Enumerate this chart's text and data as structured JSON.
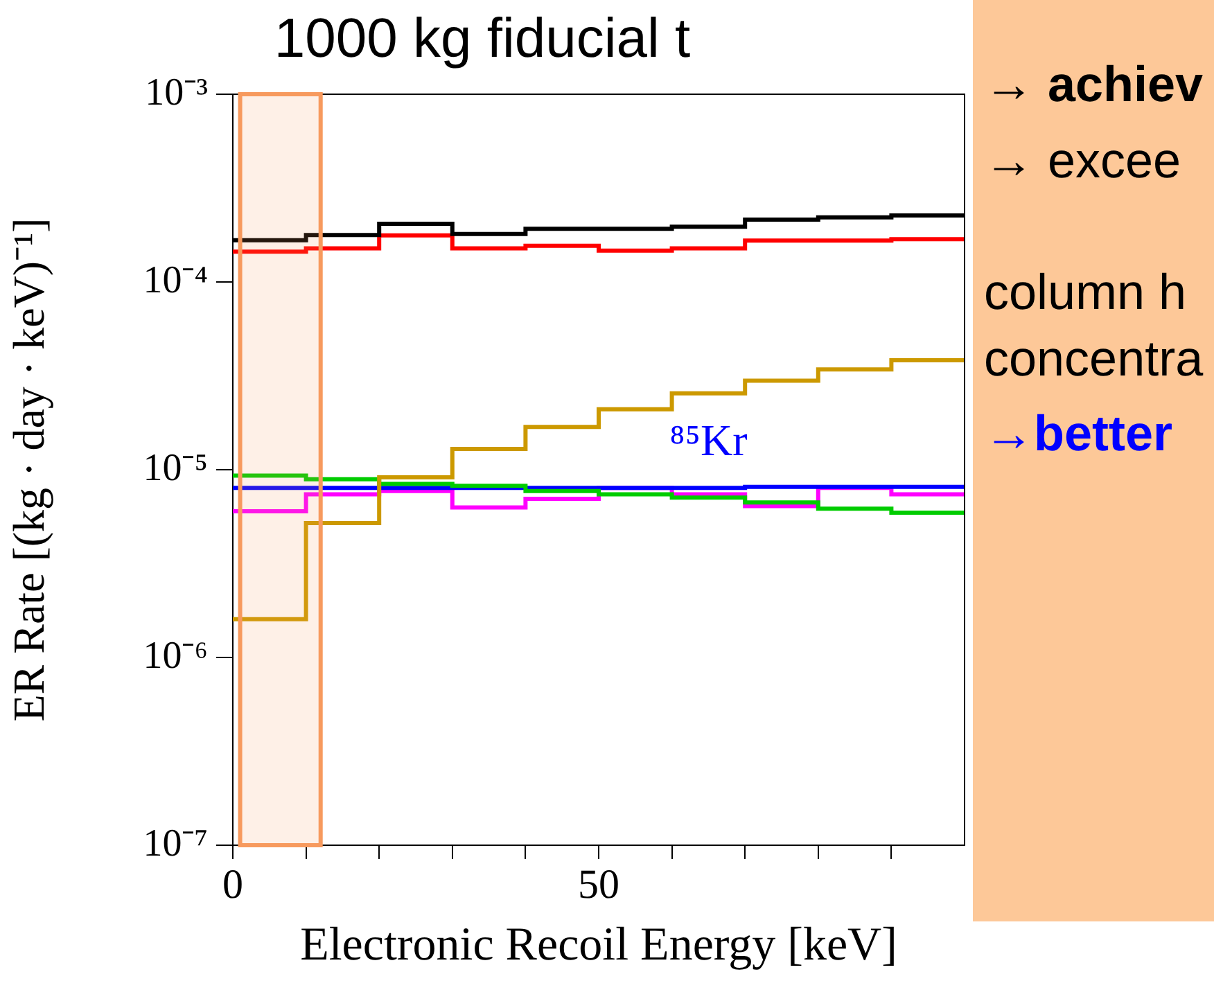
{
  "chart_data": {
    "type": "histogram",
    "title": "1000 kg fiducial t",
    "xlabel": "Electronic Recoil Energy [keV]",
    "ylabel": "ER Rate [(kg · day · keV)⁻¹]",
    "bins": [
      0,
      10,
      20,
      30,
      40,
      50,
      60,
      70,
      80,
      90,
      100
    ],
    "series": [
      {
        "color": "#000000",
        "values": [
          0.000167,
          0.000178,
          0.000204,
          0.00018,
          0.000192,
          0.000192,
          0.000197,
          0.000215,
          0.000221,
          0.000226
        ]
      },
      {
        "color": "#ff0000",
        "values": [
          0.000145,
          0.000151,
          0.000177,
          0.000151,
          0.000156,
          0.000147,
          0.000151,
          0.000166,
          0.000166,
          0.000169
        ]
      },
      {
        "color": "#cc9900",
        "values": [
          1.6e-06,
          5.2e-06,
          9.1e-06,
          1.29e-05,
          1.69e-05,
          2.1e-05,
          2.55e-05,
          2.98e-05,
          3.42e-05,
          3.83e-05
        ]
      },
      {
        "color": "#00cc00",
        "values": [
          9.3e-06,
          8.9e-06,
          8.4e-06,
          8.2e-06,
          7.7e-06,
          7.4e-06,
          7.1e-06,
          6.7e-06,
          6.2e-06,
          5.9e-06
        ]
      },
      {
        "name": "⁸⁵Kr",
        "color": "#0000ff",
        "values": [
          8e-06,
          8e-06,
          8e-06,
          8e-06,
          8e-06,
          8e-06,
          8e-06,
          8.1e-06,
          8.1e-06,
          8.1e-06
        ]
      },
      {
        "color": "#ff00ff",
        "values": [
          6e-06,
          7.4e-06,
          7.7e-06,
          6.3e-06,
          7e-06,
          8e-06,
          7.4e-06,
          6.4e-06,
          8e-06,
          7.4e-06
        ]
      }
    ],
    "xlim": [
      0,
      100
    ],
    "xticks": [
      0,
      {
        "value": 10,
        "label": null
      },
      {
        "value": 20,
        "label": null
      },
      {
        "value": 30,
        "label": null
      },
      {
        "value": 40,
        "label": null
      },
      50,
      {
        "value": 60,
        "label": null
      },
      {
        "value": 70,
        "label": null
      },
      {
        "value": 80,
        "label": null
      },
      {
        "value": 90,
        "label": null
      }
    ],
    "ylim": [
      1e-07,
      0.001
    ],
    "yticks": [
      {
        "value": 1e-07,
        "label": "10⁻⁷"
      },
      {
        "value": 1e-06,
        "label": "10⁻⁶"
      },
      {
        "value": 1e-05,
        "label": "10⁻⁵"
      },
      {
        "value": 0.0001,
        "label": "10⁻⁴"
      },
      {
        "value": 0.001,
        "label": "10⁻³"
      }
    ],
    "log": "y",
    "bands": [
      {
        "axis": "x",
        "from": 1,
        "to": 12,
        "color": "#f79a5e"
      }
    ],
    "annotations": [
      "→ achiev",
      "→ excee",
      "column h",
      "concentra",
      "→better"
    ]
  }
}
